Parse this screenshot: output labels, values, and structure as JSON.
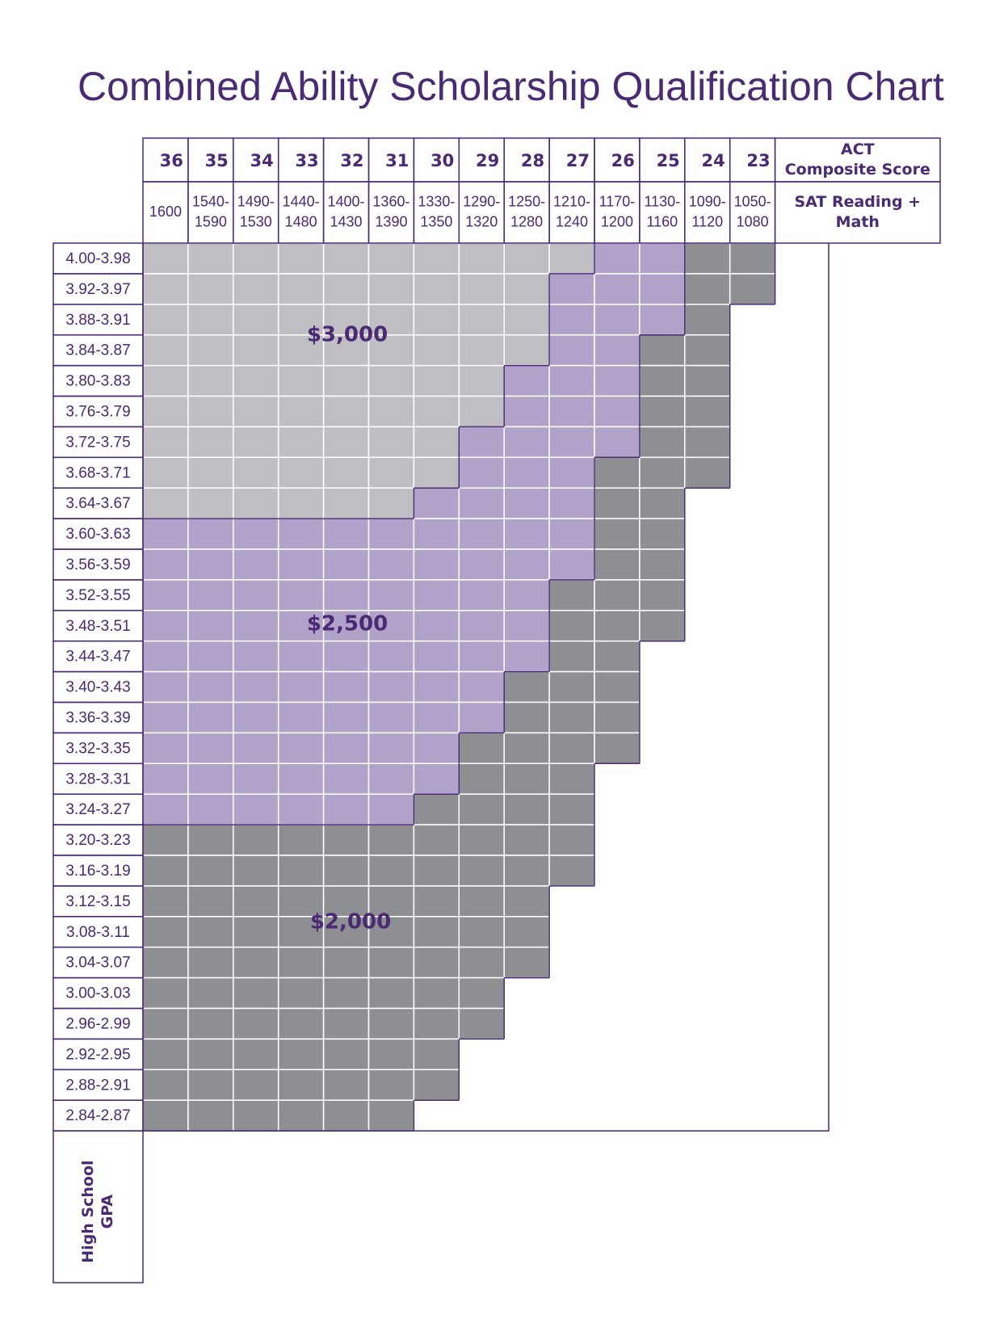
{
  "title": "Combined Ability Scholarship Qualification Chart",
  "act_label": [
    "ACT",
    "Composite Score"
  ],
  "sat_label": [
    "SAT Reading +",
    "Math"
  ],
  "gpa_label": [
    "High School",
    "GPA"
  ],
  "awards": [
    {
      "label": "$3,000",
      "color": "#bebec3"
    },
    {
      "label": "$2,500",
      "color": "#b0a2c8"
    },
    {
      "label": "$2,000",
      "color": "#8e8f93"
    }
  ],
  "columns": [
    {
      "act": 36,
      "sat": [
        "1600"
      ]
    },
    {
      "act": 35,
      "sat": [
        "1540-",
        "1590"
      ]
    },
    {
      "act": 34,
      "sat": [
        "1490-",
        "1530"
      ]
    },
    {
      "act": 33,
      "sat": [
        "1440-",
        "1480"
      ]
    },
    {
      "act": 32,
      "sat": [
        "1400-",
        "1430"
      ]
    },
    {
      "act": 31,
      "sat": [
        "1360-",
        "1390"
      ]
    },
    {
      "act": 30,
      "sat": [
        "1330-",
        "1350"
      ]
    },
    {
      "act": 29,
      "sat": [
        "1290-",
        "1320"
      ]
    },
    {
      "act": 28,
      "sat": [
        "1250-",
        "1280"
      ]
    },
    {
      "act": 27,
      "sat": [
        "1210-",
        "1240"
      ]
    },
    {
      "act": 26,
      "sat": [
        "1170-",
        "1200"
      ]
    },
    {
      "act": 25,
      "sat": [
        "1130-",
        "1160"
      ]
    },
    {
      "act": 24,
      "sat": [
        "1090-",
        "1120"
      ]
    },
    {
      "act": 23,
      "sat": [
        "1050-",
        "1080"
      ]
    }
  ],
  "rows": [
    {
      "gpa": "4.00-3.98",
      "tiers": [
        0,
        0,
        0,
        0,
        0,
        0,
        0,
        0,
        0,
        0,
        1,
        1,
        2,
        2
      ]
    },
    {
      "gpa": "3.92-3.97",
      "tiers": [
        0,
        0,
        0,
        0,
        0,
        0,
        0,
        0,
        0,
        1,
        1,
        1,
        2,
        2
      ]
    },
    {
      "gpa": "3.88-3.91",
      "tiers": [
        0,
        0,
        0,
        0,
        0,
        0,
        0,
        0,
        0,
        1,
        1,
        1,
        2,
        null
      ]
    },
    {
      "gpa": "3.84-3.87",
      "tiers": [
        0,
        0,
        0,
        0,
        0,
        0,
        0,
        0,
        0,
        1,
        1,
        2,
        2,
        null
      ]
    },
    {
      "gpa": "3.80-3.83",
      "tiers": [
        0,
        0,
        0,
        0,
        0,
        0,
        0,
        0,
        1,
        1,
        1,
        2,
        2,
        null
      ]
    },
    {
      "gpa": "3.76-3.79",
      "tiers": [
        0,
        0,
        0,
        0,
        0,
        0,
        0,
        0,
        1,
        1,
        1,
        2,
        2,
        null
      ]
    },
    {
      "gpa": "3.72-3.75",
      "tiers": [
        0,
        0,
        0,
        0,
        0,
        0,
        0,
        1,
        1,
        1,
        1,
        2,
        2,
        null
      ]
    },
    {
      "gpa": "3.68-3.71",
      "tiers": [
        0,
        0,
        0,
        0,
        0,
        0,
        0,
        1,
        1,
        1,
        2,
        2,
        2,
        null
      ]
    },
    {
      "gpa": "3.64-3.67",
      "tiers": [
        0,
        0,
        0,
        0,
        0,
        0,
        1,
        1,
        1,
        1,
        2,
        2,
        null,
        null
      ]
    },
    {
      "gpa": "3.60-3.63",
      "tiers": [
        1,
        1,
        1,
        1,
        1,
        1,
        1,
        1,
        1,
        1,
        2,
        2,
        null,
        null
      ]
    },
    {
      "gpa": "3.56-3.59",
      "tiers": [
        1,
        1,
        1,
        1,
        1,
        1,
        1,
        1,
        1,
        1,
        2,
        2,
        null,
        null
      ]
    },
    {
      "gpa": "3.52-3.55",
      "tiers": [
        1,
        1,
        1,
        1,
        1,
        1,
        1,
        1,
        1,
        2,
        2,
        2,
        null,
        null
      ]
    },
    {
      "gpa": "3.48-3.51",
      "tiers": [
        1,
        1,
        1,
        1,
        1,
        1,
        1,
        1,
        1,
        2,
        2,
        2,
        null,
        null
      ]
    },
    {
      "gpa": "3.44-3.47",
      "tiers": [
        1,
        1,
        1,
        1,
        1,
        1,
        1,
        1,
        1,
        2,
        2,
        null,
        null,
        null
      ]
    },
    {
      "gpa": "3.40-3.43",
      "tiers": [
        1,
        1,
        1,
        1,
        1,
        1,
        1,
        1,
        2,
        2,
        2,
        null,
        null,
        null
      ]
    },
    {
      "gpa": "3.36-3.39",
      "tiers": [
        1,
        1,
        1,
        1,
        1,
        1,
        1,
        1,
        2,
        2,
        2,
        null,
        null,
        null
      ]
    },
    {
      "gpa": "3.32-3.35",
      "tiers": [
        1,
        1,
        1,
        1,
        1,
        1,
        1,
        2,
        2,
        2,
        2,
        null,
        null,
        null
      ]
    },
    {
      "gpa": "3.28-3.31",
      "tiers": [
        1,
        1,
        1,
        1,
        1,
        1,
        1,
        2,
        2,
        2,
        null,
        null,
        null,
        null
      ]
    },
    {
      "gpa": "3.24-3.27",
      "tiers": [
        1,
        1,
        1,
        1,
        1,
        1,
        2,
        2,
        2,
        2,
        null,
        null,
        null,
        null
      ]
    },
    {
      "gpa": "3.20-3.23",
      "tiers": [
        2,
        2,
        2,
        2,
        2,
        2,
        2,
        2,
        2,
        2,
        null,
        null,
        null,
        null
      ]
    },
    {
      "gpa": "3.16-3.19",
      "tiers": [
        2,
        2,
        2,
        2,
        2,
        2,
        2,
        2,
        2,
        2,
        null,
        null,
        null,
        null
      ]
    },
    {
      "gpa": "3.12-3.15",
      "tiers": [
        2,
        2,
        2,
        2,
        2,
        2,
        2,
        2,
        2,
        null,
        null,
        null,
        null,
        null
      ]
    },
    {
      "gpa": "3.08-3.11",
      "tiers": [
        2,
        2,
        2,
        2,
        2,
        2,
        2,
        2,
        2,
        null,
        null,
        null,
        null,
        null
      ]
    },
    {
      "gpa": "3.04-3.07",
      "tiers": [
        2,
        2,
        2,
        2,
        2,
        2,
        2,
        2,
        2,
        null,
        null,
        null,
        null,
        null
      ]
    },
    {
      "gpa": "3.00-3.03",
      "tiers": [
        2,
        2,
        2,
        2,
        2,
        2,
        2,
        2,
        null,
        null,
        null,
        null,
        null,
        null
      ]
    },
    {
      "gpa": "2.96-2.99",
      "tiers": [
        2,
        2,
        2,
        2,
        2,
        2,
        2,
        2,
        null,
        null,
        null,
        null,
        null,
        null
      ]
    },
    {
      "gpa": "2.92-2.95",
      "tiers": [
        2,
        2,
        2,
        2,
        2,
        2,
        2,
        null,
        null,
        null,
        null,
        null,
        null,
        null
      ]
    },
    {
      "gpa": "2.88-2.91",
      "tiers": [
        2,
        2,
        2,
        2,
        2,
        2,
        2,
        null,
        null,
        null,
        null,
        null,
        null,
        null
      ]
    },
    {
      "gpa": "2.84-2.87",
      "tiers": [
        2,
        2,
        2,
        2,
        2,
        2,
        null,
        null,
        null,
        null,
        null,
        null,
        null,
        null
      ]
    }
  ]
}
